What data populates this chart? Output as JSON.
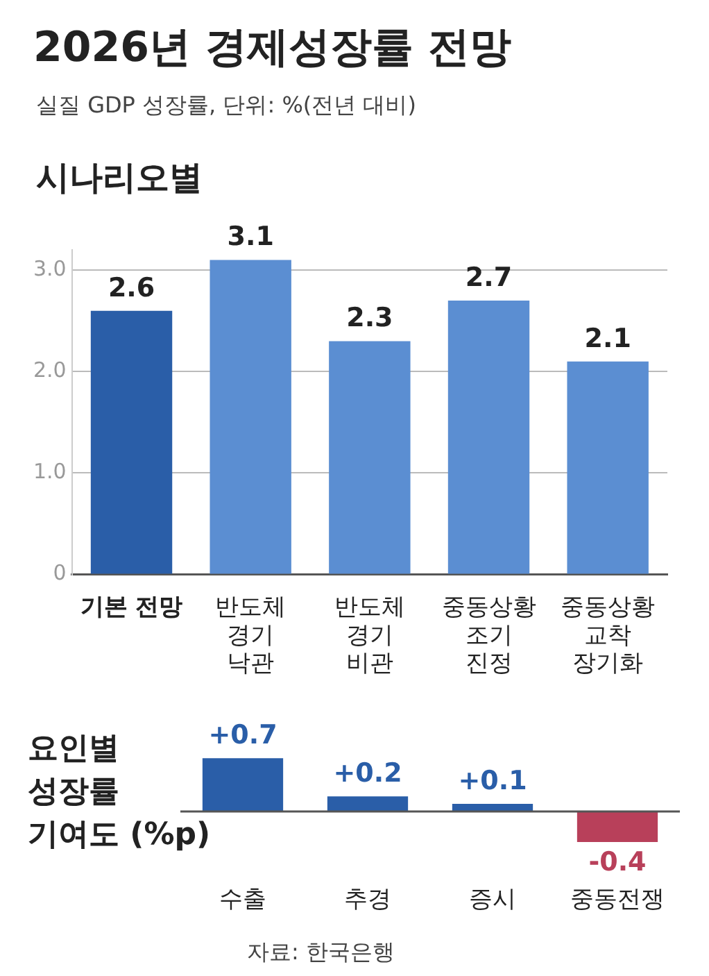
{
  "chart_data": [
    {
      "type": "bar",
      "title": "2026년 경제성장률 전망",
      "subtitle": "실질 GDP 성장률, 단위: %(전년 대비)",
      "annotations": [
        "시나리오별"
      ],
      "categories": [
        "기본 전망",
        "반도체\n경기\n낙관",
        "반도체\n경기\n비관",
        "중동상황\n조기\n진정",
        "중동상황\n교착\n장기화"
      ],
      "values": [
        2.6,
        3.1,
        2.3,
        2.7,
        2.1
      ],
      "colors": [
        "#2a5ea8",
        "#5b8ed2",
        "#5b8ed2",
        "#5b8ed2",
        "#5b8ed2"
      ],
      "ylim": [
        0,
        3.2
      ],
      "yticks": [
        0,
        {
          "value": 1,
          "label": "1.0"
        },
        {
          "value": 2,
          "label": "2.0"
        },
        {
          "value": 3,
          "label": "3.0"
        }
      ],
      "grid": "y",
      "data_labels": true
    },
    {
      "type": "bar",
      "title": "요인별\n성장률\n기여도 (%p)",
      "annotations": [
        "자료: 한국은행"
      ],
      "categories": [
        "수출",
        "추경",
        "증시",
        "중동전쟁"
      ],
      "values": [
        0.7,
        0.2,
        0.1,
        -0.4
      ],
      "colors": [
        "#2a5ea8",
        "#2a5ea8",
        "#2a5ea8",
        "#b8405a"
      ],
      "value_labels": [
        "+0.7",
        "+0.2",
        "+0.1",
        "-0.4"
      ]
    }
  ]
}
